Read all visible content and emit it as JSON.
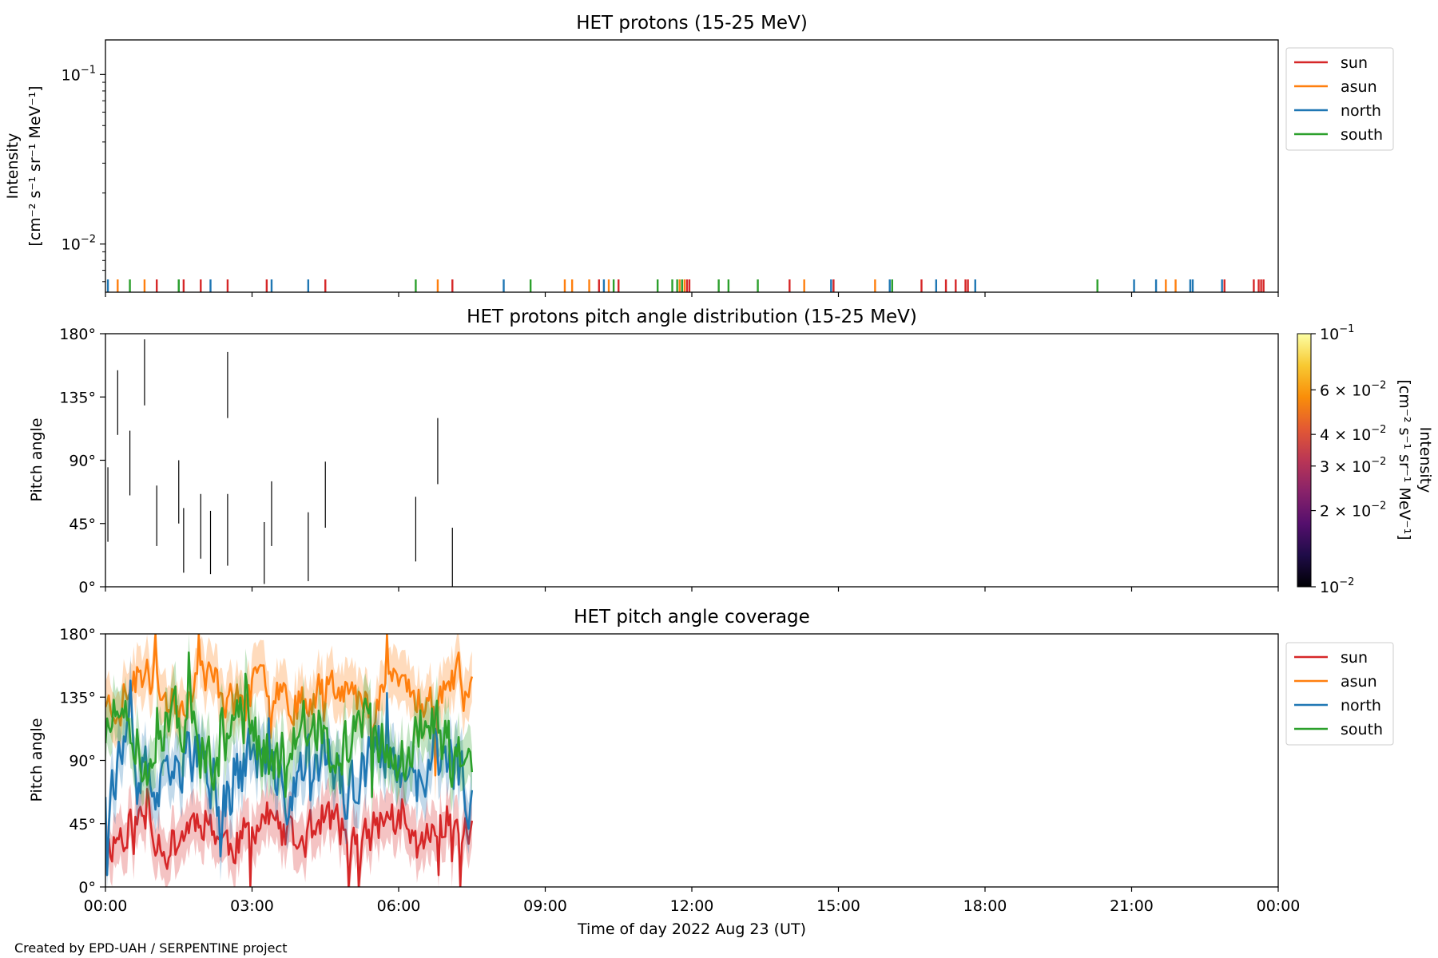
{
  "footer": {
    "credit": "Created by EPD-UAH / SERPENTINE project"
  },
  "chart_data": [
    {
      "panel": "intensity",
      "type": "line",
      "title": "HET protons (15-25 MeV)",
      "ylabel_line1": "Intensity",
      "ylabel_line2": "[cm⁻² s⁻¹ sr⁻¹ MeV⁻¹]",
      "yscale": "log",
      "ylim": [
        0.0052,
        0.16
      ],
      "ytick_labels": [
        {
          "value": 0.1,
          "base": "10",
          "exp": "−1"
        },
        {
          "value": 0.01,
          "base": "10",
          "exp": "−2"
        }
      ],
      "xlim_hours": [
        0,
        24
      ],
      "legend_position": "upper right, outside axes",
      "series": [
        {
          "name": "sun",
          "color": "#d62728",
          "spike_hours": [
            1.05,
            1.6,
            1.95,
            2.5,
            3.3,
            4.5,
            7.1,
            10.1,
            10.5,
            11.9,
            11.95,
            14.0,
            14.9,
            16.7,
            17.2,
            17.4,
            17.6,
            17.65,
            22.9,
            23.5,
            23.6,
            23.65,
            23.7
          ]
        },
        {
          "name": "asun",
          "color": "#ff7f0e",
          "spike_hours": [
            0.25,
            0.8,
            6.8,
            9.4,
            9.55,
            9.9,
            10.3,
            11.75,
            11.85,
            14.3,
            15.75,
            21.7,
            21.9
          ]
        },
        {
          "name": "north",
          "color": "#1f77b4",
          "spike_hours": [
            0.05,
            1.5,
            2.15,
            3.4,
            4.15,
            8.15,
            10.2,
            11.8,
            14.85,
            16.05,
            16.1,
            17.0,
            17.8,
            21.05,
            21.5,
            22.2,
            22.25,
            22.85
          ]
        },
        {
          "name": "south",
          "color": "#2ca02c",
          "spike_hours": [
            0.5,
            1.5,
            6.35,
            8.7,
            10.4,
            11.3,
            11.6,
            11.7,
            11.8,
            12.55,
            12.75,
            13.35,
            16.1,
            20.3
          ]
        }
      ]
    },
    {
      "panel": "pad",
      "type": "heatmap",
      "title": "HET protons pitch angle distribution (15-25 MeV)",
      "ylabel": "Pitch angle",
      "ylim_deg": [
        0,
        180
      ],
      "yticks": [
        "0°",
        "45°",
        "90°",
        "135°",
        "180°"
      ],
      "colormap": "inferno",
      "colorbar_scale": "log",
      "colorbar_range": [
        0.01,
        0.1
      ],
      "colorbar_label_line1": "Intensity",
      "colorbar_label_line2": "[cm⁻² s⁻¹ sr⁻¹ MeV⁻¹]",
      "colorbar_ticks": [
        {
          "value": 0.1,
          "mant": "",
          "base": "10",
          "exp": "−1"
        },
        {
          "value": 0.06,
          "mant": "6 × ",
          "base": "10",
          "exp": "−2"
        },
        {
          "value": 0.04,
          "mant": "4 × ",
          "base": "10",
          "exp": "−2"
        },
        {
          "value": 0.03,
          "mant": "3 × ",
          "base": "10",
          "exp": "−2"
        },
        {
          "value": 0.02,
          "mant": "2 × ",
          "base": "10",
          "exp": "−2"
        },
        {
          "value": 0.01,
          "mant": "",
          "base": "10",
          "exp": "−2"
        }
      ],
      "segments": [
        {
          "hour": 0.05,
          "lo": 32,
          "hi": 85
        },
        {
          "hour": 0.25,
          "lo": 108,
          "hi": 154
        },
        {
          "hour": 0.5,
          "lo": 65,
          "hi": 111
        },
        {
          "hour": 0.8,
          "lo": 129,
          "hi": 176
        },
        {
          "hour": 1.05,
          "lo": 29,
          "hi": 72
        },
        {
          "hour": 1.5,
          "lo": 45,
          "hi": 90
        },
        {
          "hour": 1.6,
          "lo": 10,
          "hi": 56
        },
        {
          "hour": 1.95,
          "lo": 20,
          "hi": 66
        },
        {
          "hour": 2.15,
          "lo": 9,
          "hi": 54
        },
        {
          "hour": 2.5,
          "lo": 15,
          "hi": 66
        },
        {
          "hour": 2.5,
          "lo": 120,
          "hi": 167
        },
        {
          "hour": 3.25,
          "lo": 2,
          "hi": 46
        },
        {
          "hour": 3.4,
          "lo": 29,
          "hi": 75
        },
        {
          "hour": 4.15,
          "lo": 4,
          "hi": 53
        },
        {
          "hour": 4.5,
          "lo": 42,
          "hi": 89
        },
        {
          "hour": 6.35,
          "lo": 18,
          "hi": 64
        },
        {
          "hour": 6.8,
          "lo": 73,
          "hi": 120
        },
        {
          "hour": 7.1,
          "lo": 0,
          "hi": 42
        }
      ]
    },
    {
      "panel": "coverage",
      "type": "line",
      "title": "HET pitch angle coverage",
      "ylabel": "Pitch angle",
      "xlabel": "Time of day 2022 Aug 23 (UT)",
      "ylim_deg": [
        0,
        180
      ],
      "yticks": [
        "0°",
        "45°",
        "90°",
        "135°",
        "180°"
      ],
      "xticks": [
        "00:00",
        "03:00",
        "06:00",
        "09:00",
        "12:00",
        "15:00",
        "18:00",
        "21:00",
        "00:00"
      ],
      "data_end_hour": 7.5,
      "band_halfwidth_deg": 18,
      "legend_position": "upper right, outside axes",
      "series": [
        {
          "name": "sun",
          "color": "#d62728",
          "mean_deg": 40,
          "amp_deg": 20,
          "seed": 11
        },
        {
          "name": "asun",
          "color": "#ff7f0e",
          "mean_deg": 140,
          "amp_deg": 20,
          "seed": 23
        },
        {
          "name": "north",
          "color": "#1f77b4",
          "mean_deg": 80,
          "amp_deg": 30,
          "seed": 37
        },
        {
          "name": "south",
          "color": "#2ca02c",
          "mean_deg": 105,
          "amp_deg": 28,
          "seed": 51
        }
      ]
    }
  ]
}
